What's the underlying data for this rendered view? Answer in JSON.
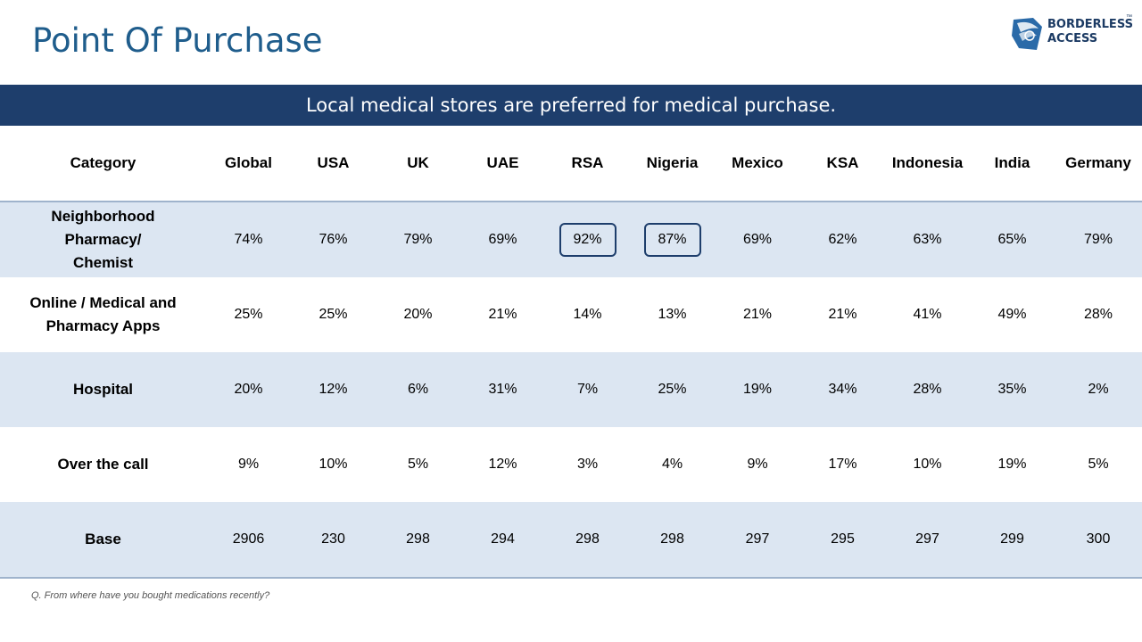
{
  "title": "Point Of Purchase",
  "logo": {
    "line1": "BORDERLESS",
    "line2": "ACCESS",
    "tm": "™"
  },
  "banner": "Local medical stores are preferred for medical purchase.",
  "note": "Q. From where have you bought medications recently?",
  "colors": {
    "title": "#1f5d8c",
    "banner": "#1e3e6c",
    "row_shade": "#dce6f2",
    "highlight_border": "#1e3e6c"
  },
  "chart_data": {
    "type": "table",
    "header_label": "Category",
    "columns": [
      "Global",
      "USA",
      "UK",
      "UAE",
      "RSA",
      "Nigeria",
      "Mexico",
      "KSA",
      "Indonesia",
      "India",
      "Germany"
    ],
    "rows": [
      {
        "label": "Neighborhood Pharmacy/ Chemist",
        "values": [
          "74%",
          "76%",
          "79%",
          "69%",
          "92%",
          "87%",
          "69%",
          "62%",
          "63%",
          "65%",
          "79%"
        ],
        "highlight": [
          "RSA",
          "Nigeria"
        ]
      },
      {
        "label": "Online / Medical and Pharmacy Apps",
        "values": [
          "25%",
          "25%",
          "20%",
          "21%",
          "14%",
          "13%",
          "21%",
          "21%",
          "41%",
          "49%",
          "28%"
        ]
      },
      {
        "label": "Hospital",
        "values": [
          "20%",
          "12%",
          "6%",
          "31%",
          "7%",
          "25%",
          "19%",
          "34%",
          "28%",
          "35%",
          "2%"
        ]
      },
      {
        "label": "Over the call",
        "values": [
          "9%",
          "10%",
          "5%",
          "12%",
          "3%",
          "4%",
          "9%",
          "17%",
          "10%",
          "19%",
          "5%"
        ]
      },
      {
        "label": "Base",
        "values": [
          "2906",
          "230",
          "298",
          "294",
          "298",
          "298",
          "297",
          "295",
          "297",
          "299",
          "300"
        ]
      }
    ]
  }
}
